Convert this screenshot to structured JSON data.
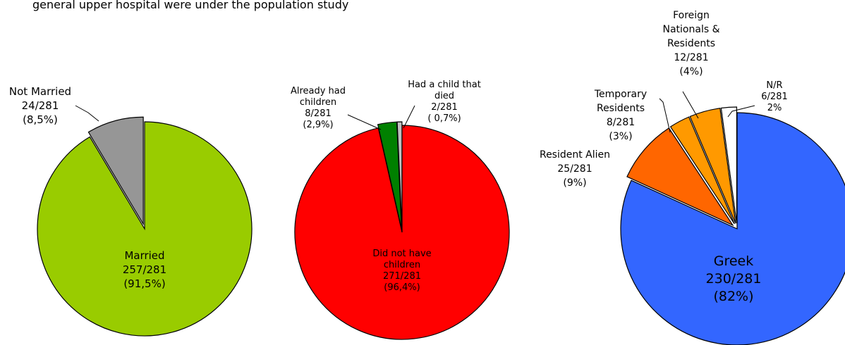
{
  "header_text": "general upper hospital  were  under the  population study",
  "chart_data": [
    {
      "type": "pie",
      "title": "",
      "slices": [
        {
          "label": "Married",
          "value": 257,
          "fraction_text": "257/281",
          "pct_text": "(91,5%)",
          "color": "#99cc00"
        },
        {
          "label": "Not Married",
          "value": 24,
          "fraction_text": "24/281",
          "pct_text": "(8,5%)",
          "color": "#969696"
        }
      ]
    },
    {
      "type": "pie",
      "title": "",
      "slices": [
        {
          "label": "Did not have children",
          "value": 271,
          "fraction_text": "271/281",
          "pct_text": "(96,4%)",
          "color": "#ff0000"
        },
        {
          "label": "Already had children",
          "value": 8,
          "fraction_text": "8/281",
          "pct_text": "(2,9%)",
          "color": "#008000"
        },
        {
          "label": "Had a child that died",
          "value": 2,
          "fraction_text": "2/281",
          "pct_text": "( 0,7%)",
          "color": "#c0c0c0"
        }
      ]
    },
    {
      "type": "pie",
      "title": "",
      "slices": [
        {
          "label": "Greek",
          "value": 230,
          "fraction_text": "230/281",
          "pct_text": "(82%)",
          "color": "#3366ff"
        },
        {
          "label": "Resident Alien",
          "value": 25,
          "fraction_text": "25/281",
          "pct_text": "(9%)",
          "color": "#ff6600"
        },
        {
          "label": "Temporary Residents",
          "value": 8,
          "fraction_text": "8/281",
          "pct_text": "(3%)",
          "color": "#ff9900"
        },
        {
          "label": "Foreign Nationals & Residents",
          "value": 12,
          "fraction_text": "12/281",
          "pct_text": "(4%)",
          "color": "#ff9900"
        },
        {
          "label": "N/R",
          "value": 6,
          "fraction_text": "6/281",
          "pct_text": "2%",
          "color": "#ffffff"
        }
      ]
    }
  ]
}
